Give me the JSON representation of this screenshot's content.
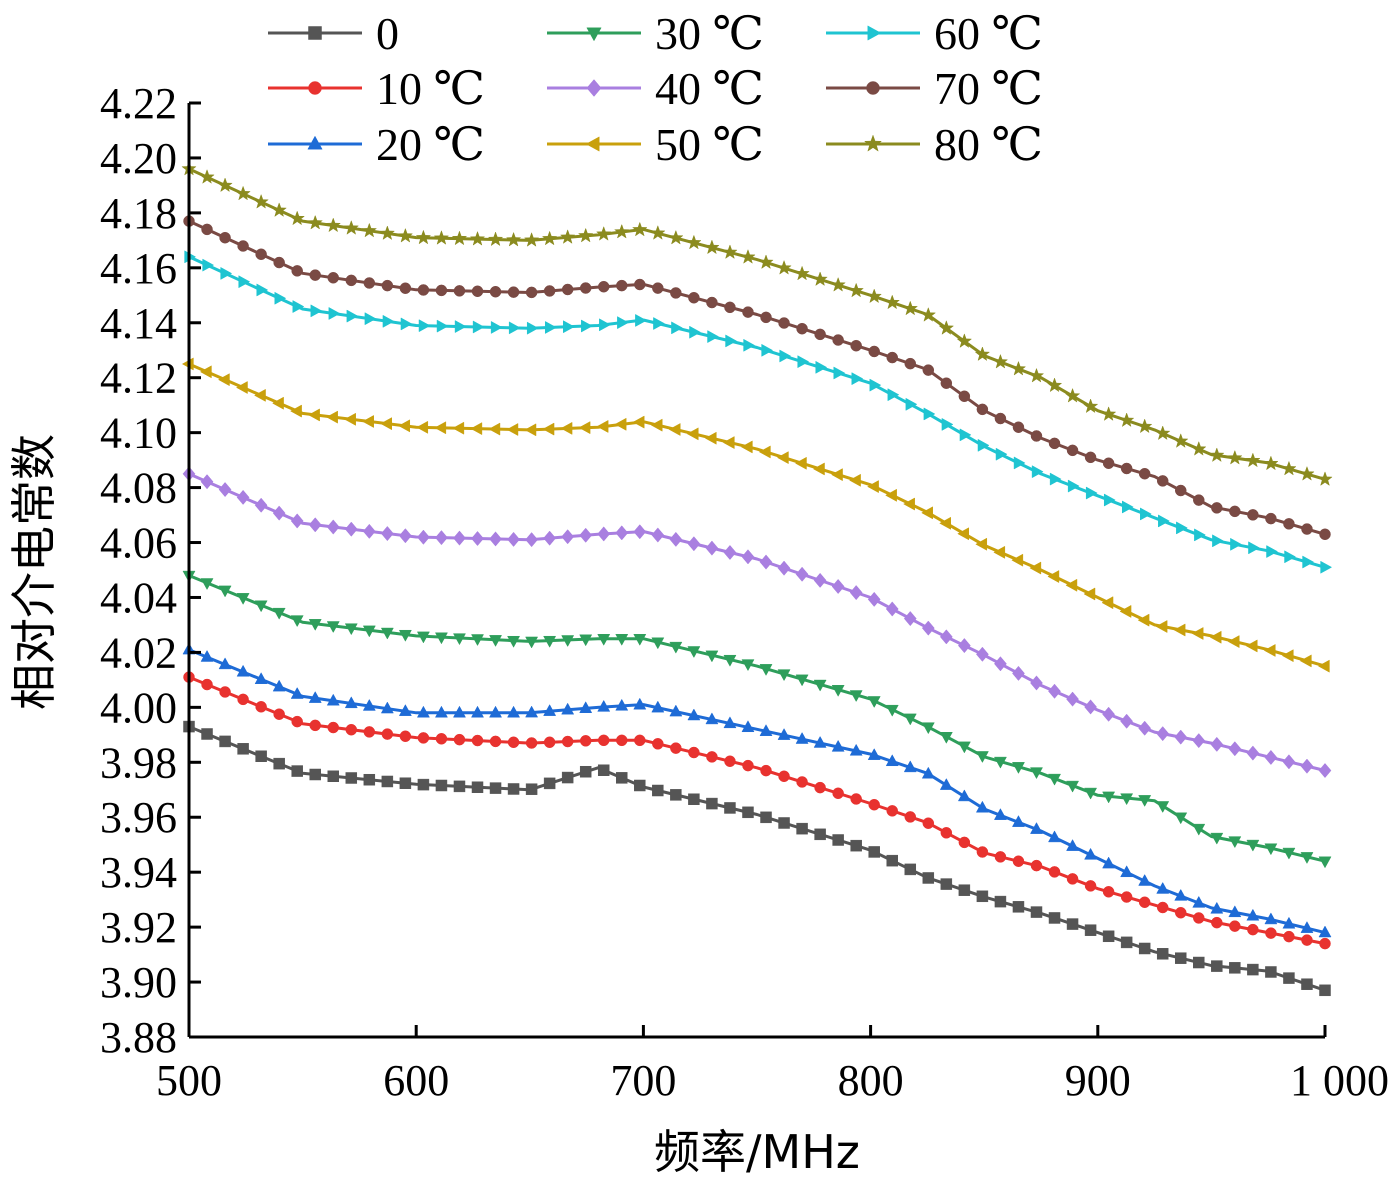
{
  "chart_data": {
    "type": "line",
    "title": "",
    "xlabel": "频率/MHz",
    "ylabel": "相对介电常数",
    "xlim": [
      500,
      1000
    ],
    "ylim": [
      3.88,
      4.22
    ],
    "x_ticks": [
      500,
      600,
      700,
      800,
      900,
      1000
    ],
    "x_tick_labels": [
      "500",
      "600",
      "700",
      "800",
      "900",
      "1 000"
    ],
    "y_ticks": [
      3.88,
      3.9,
      3.92,
      3.94,
      3.96,
      3.98,
      4.0,
      4.02,
      4.04,
      4.06,
      4.08,
      4.1,
      4.12,
      4.14,
      4.16,
      4.18,
      4.2,
      4.22
    ],
    "y_tick_labels": [
      "3.88",
      "3.90",
      "3.92",
      "3.94",
      "3.96",
      "3.98",
      "4.00",
      "4.02",
      "4.04",
      "4.06",
      "4.08",
      "4.10",
      "4.12",
      "4.14",
      "4.16",
      "4.18",
      "4.20",
      "4.22"
    ],
    "grid": false,
    "legend_position": "top",
    "x": [
      500,
      550,
      600,
      650,
      680,
      700,
      750,
      800,
      825,
      850,
      875,
      900,
      925,
      950,
      975,
      1000
    ],
    "series": [
      {
        "name": "0",
        "color": "#555555",
        "marker": "square",
        "values": [
          3.993,
          3.976,
          3.972,
          3.97,
          3.978,
          3.971,
          3.961,
          3.948,
          3.938,
          3.931,
          3.925,
          3.918,
          3.911,
          3.906,
          3.904,
          3.897
        ]
      },
      {
        "name": "10 ℃",
        "color": "#e8322f",
        "marker": "circle",
        "values": [
          4.011,
          3.994,
          3.989,
          3.987,
          3.988,
          3.988,
          3.978,
          3.965,
          3.958,
          3.947,
          3.942,
          3.934,
          3.928,
          3.922,
          3.918,
          3.914
        ]
      },
      {
        "name": "20 ℃",
        "color": "#1e6bd6",
        "marker": "triangle-up",
        "values": [
          4.021,
          4.004,
          3.998,
          3.998,
          4.0,
          4.001,
          3.992,
          3.983,
          3.976,
          3.963,
          3.955,
          3.945,
          3.935,
          3.927,
          3.923,
          3.918
        ]
      },
      {
        "name": "30 ℃",
        "color": "#2e9e5b",
        "marker": "triangle-down",
        "values": [
          4.048,
          4.031,
          4.026,
          4.024,
          4.025,
          4.025,
          4.015,
          4.003,
          3.993,
          3.982,
          3.976,
          3.968,
          3.966,
          3.953,
          3.949,
          3.944
        ]
      },
      {
        "name": "40 ℃",
        "color": "#a97fe0",
        "marker": "diamond",
        "values": [
          4.085,
          4.067,
          4.062,
          4.061,
          4.063,
          4.064,
          4.054,
          4.04,
          4.029,
          4.019,
          4.008,
          3.999,
          3.991,
          3.987,
          3.982,
          3.977
        ]
      },
      {
        "name": "50 ℃",
        "color": "#c9a00c",
        "marker": "triangle-left",
        "values": [
          4.125,
          4.107,
          4.102,
          4.101,
          4.102,
          4.104,
          4.094,
          4.081,
          4.071,
          4.059,
          4.05,
          4.04,
          4.03,
          4.026,
          4.021,
          4.015
        ]
      },
      {
        "name": "60 ℃",
        "color": "#1fc4d1",
        "marker": "triangle-right",
        "values": [
          4.164,
          4.145,
          4.139,
          4.138,
          4.139,
          4.141,
          4.131,
          4.118,
          4.107,
          4.095,
          4.085,
          4.077,
          4.069,
          4.061,
          4.057,
          4.051
        ]
      },
      {
        "name": "70 ℃",
        "color": "#7a4a44",
        "marker": "circle",
        "values": [
          4.177,
          4.158,
          4.152,
          4.151,
          4.153,
          4.154,
          4.143,
          4.13,
          4.123,
          4.108,
          4.098,
          4.09,
          4.084,
          4.073,
          4.069,
          4.063
        ]
      },
      {
        "name": "80 ℃",
        "color": "#8b8b1f",
        "marker": "star",
        "values": [
          4.196,
          4.177,
          4.171,
          4.17,
          4.172,
          4.174,
          4.163,
          4.15,
          4.143,
          4.128,
          4.12,
          4.108,
          4.101,
          4.092,
          4.089,
          4.083
        ]
      }
    ]
  }
}
